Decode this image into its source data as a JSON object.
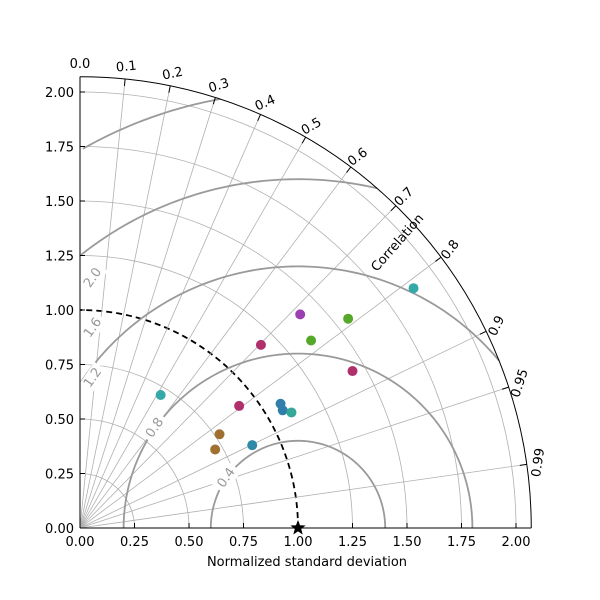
{
  "chart_data": {
    "type": "scatter",
    "xlabel": "Normalized standard deviation",
    "arc_label": "Correlation",
    "xlim": [
      0,
      2.07
    ],
    "ylim": [
      0,
      2.07
    ],
    "std_ticks": [
      0,
      0.25,
      0.5,
      0.75,
      1.0,
      1.25,
      1.5,
      1.75,
      2.0
    ],
    "std_tick_labels": [
      "0.00",
      "0.25",
      "0.50",
      "0.75",
      "1.00",
      "1.25",
      "1.50",
      "1.75",
      "2.00"
    ],
    "correlation_ticks": [
      0.0,
      0.1,
      0.2,
      0.3,
      0.4,
      0.5,
      0.6,
      0.7,
      0.8,
      0.9,
      0.95,
      0.99
    ],
    "correlation_tick_labels": [
      "0.0",
      "0.1",
      "0.2",
      "0.3",
      "0.4",
      "0.5",
      "0.6",
      "0.7",
      "0.8",
      "0.9",
      "0.95",
      "0.99"
    ],
    "std_gridlines": [
      0.25,
      0.5,
      0.75,
      1.0,
      1.25,
      1.5,
      1.75,
      2.0
    ],
    "rms_contours": [
      0.4,
      0.8,
      1.2,
      1.6,
      2.0
    ],
    "rms_contour_labels": [
      "0.4",
      "0.8",
      "1.2",
      "1.6",
      "2.0"
    ],
    "reference": {
      "std": 1.0,
      "correlation": 1.0,
      "marker": "star"
    },
    "grid": true,
    "points": [
      {
        "x": 1.53,
        "y": 1.1,
        "color": "#35a8a8"
      },
      {
        "x": 1.01,
        "y": 0.98,
        "color": "#9a40b0"
      },
      {
        "x": 1.23,
        "y": 0.96,
        "color": "#55a82a"
      },
      {
        "x": 1.06,
        "y": 0.86,
        "color": "#55a82a"
      },
      {
        "x": 0.83,
        "y": 0.84,
        "color": "#b0306e"
      },
      {
        "x": 1.25,
        "y": 0.72,
        "color": "#b0306e"
      },
      {
        "x": 0.37,
        "y": 0.61,
        "color": "#35a8a8"
      },
      {
        "x": 0.73,
        "y": 0.56,
        "color": "#b0306e"
      },
      {
        "x": 0.92,
        "y": 0.57,
        "color": "#2f7faa"
      },
      {
        "x": 0.93,
        "y": 0.54,
        "color": "#2f7faa"
      },
      {
        "x": 0.97,
        "y": 0.53,
        "color": "#35a898"
      },
      {
        "x": 0.64,
        "y": 0.43,
        "color": "#a07030"
      },
      {
        "x": 0.79,
        "y": 0.38,
        "color": "#2f8aa8"
      },
      {
        "x": 0.62,
        "y": 0.36,
        "color": "#a07030"
      }
    ]
  }
}
